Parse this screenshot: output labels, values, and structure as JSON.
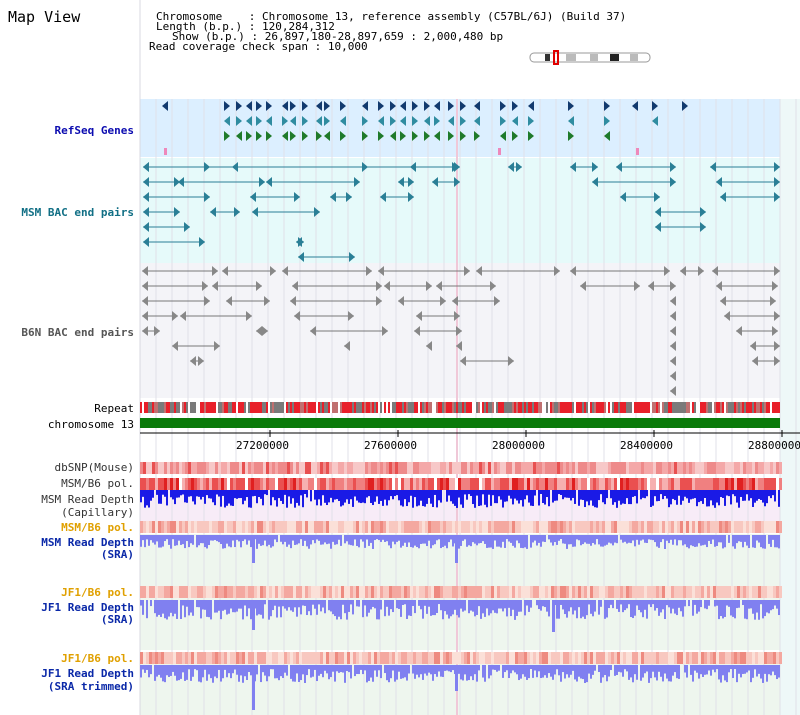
{
  "view_title": "Map View",
  "info": {
    "chromosome_label": "Chromosome",
    "chromosome_value": "Chromosome 13, reference assembly (C57BL/6J) (Build 37)",
    "length_label": "Length (b.p.)",
    "length_value": "120,284,312",
    "show_label": "Show (b.p.)",
    "show_value": "26,897,180-28,897,659 : 2,000,480 bp",
    "coverage_label": "Read coverage check span",
    "coverage_value": "10,000"
  },
  "tracks": {
    "refseq": "RefSeq Genes",
    "msm_bac": "MSM BAC end pairs",
    "b6n_bac": "B6N BAC end pairs",
    "repeat": "Repeat",
    "chromosome": "chromosome 13",
    "dbsnp": "dbSNP(Mouse)",
    "msm_b6_pol": "MSM/B6 pol.",
    "msm_depth_cap_1": "MSM Read Depth",
    "msm_depth_cap_2": "(Capillary)",
    "msm_b6_pol_2": "MSM/B6 pol.",
    "msm_depth_sra_1": "MSM Read Depth",
    "msm_depth_sra_2": "(SRA)",
    "jf1_b6_pol": "JF1/B6 pol.",
    "jf1_depth_sra_1": "JF1 Read Depth",
    "jf1_depth_sra_2": "(SRA)",
    "jf1_b6_pol_2": "JF1/B6 pol.",
    "jf1_depth_trim_1": "JF1 Read Depth",
    "jf1_depth_trim_2": "(SRA trimmed)"
  },
  "axis_ticks": [
    "27200000",
    "27600000",
    "28000000",
    "28400000",
    "28800000"
  ],
  "colors": {
    "refseq_bg": "#dcefff",
    "msm_bg": "#e6fafa",
    "b6n_bg": "#f4f4f8",
    "chromosome_bar": "#0a7a0a",
    "depth_capillary": "#1a1ae6",
    "depth_sra": "#8080f0"
  }
}
